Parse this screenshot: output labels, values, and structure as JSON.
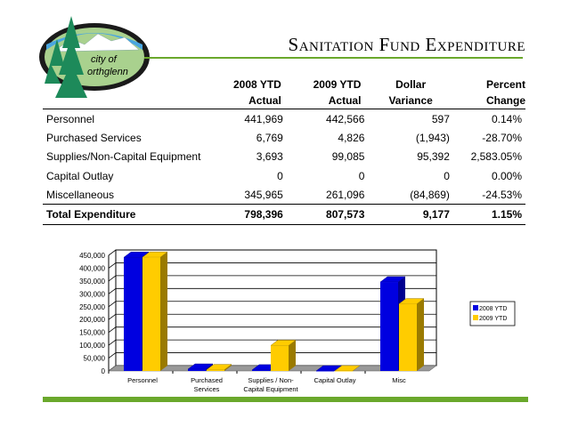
{
  "logo": {
    "text": "City of Northglenn"
  },
  "title": "Sanitation Fund Expenditure",
  "table": {
    "headers": [
      [
        "",
        ""
      ],
      [
        "2008 YTD",
        "Actual"
      ],
      [
        "2009 YTD",
        "Actual"
      ],
      [
        "Dollar",
        "Variance"
      ],
      [
        "Percent",
        "Change"
      ]
    ],
    "rows": [
      [
        "Personnel",
        "441,969",
        "442,566",
        "597",
        "0.14%"
      ],
      [
        "Purchased Services",
        "6,769",
        "4,826",
        "(1,943)",
        "-28.70%"
      ],
      [
        "Supplies/Non-Capital Equipment",
        "3,693",
        "99,085",
        "95,392",
        "2,583.05%"
      ],
      [
        "Capital Outlay",
        "0",
        "0",
        "0",
        "0.00%"
      ],
      [
        "Miscellaneous",
        "345,965",
        "261,096",
        "(84,869)",
        "-24.53%"
      ]
    ],
    "total": [
      "Total Expenditure",
      "798,396",
      "807,573",
      "9,177",
      "1.15%"
    ]
  },
  "chart_data": {
    "type": "bar",
    "categories": [
      "Personnel",
      "Purchased Services",
      "Supplies / Non-Capital Equipment",
      "Capital Outlay",
      "Misc"
    ],
    "category_lines": [
      [
        "Personnel"
      ],
      [
        "Purchased",
        "Services"
      ],
      [
        "Supplies / Non-",
        "Capital Equipment"
      ],
      [
        "Capital Outlay"
      ],
      [
        "Misc"
      ]
    ],
    "series": [
      {
        "name": "2008 YTD",
        "color": "#0000e0",
        "side": "#000090",
        "values": [
          441969,
          6769,
          3693,
          0,
          345965
        ]
      },
      {
        "name": "2009 YTD",
        "color": "#ffcc00",
        "side": "#9a7a00",
        "values": [
          442566,
          4826,
          99085,
          0,
          261096
        ]
      }
    ],
    "ylim": [
      0,
      450000
    ],
    "yticks": [
      0,
      50000,
      100000,
      150000,
      200000,
      250000,
      300000,
      350000,
      400000,
      450000
    ],
    "ytick_labels": [
      "0",
      "50,000",
      "100,000",
      "150,000",
      "200,000",
      "250,000",
      "300,000",
      "350,000",
      "400,000",
      "450,000"
    ],
    "legend": "right",
    "grid": true
  }
}
